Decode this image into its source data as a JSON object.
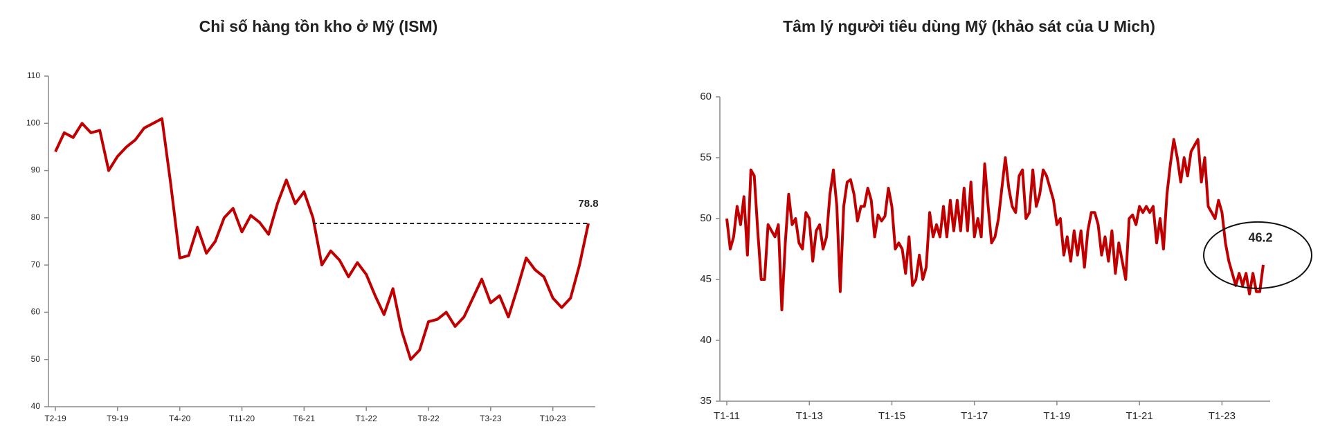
{
  "chart_data": [
    {
      "type": "line",
      "title": "Chỉ số hàng tồn kho ở Mỹ (ISM)",
      "categories": [
        "T2-19",
        null,
        null,
        null,
        null,
        null,
        null,
        "T9-19",
        null,
        null,
        null,
        null,
        null,
        null,
        "T4-20",
        null,
        null,
        null,
        null,
        null,
        null,
        "T11-20",
        null,
        null,
        null,
        null,
        null,
        null,
        "T6-21",
        null,
        null,
        null,
        null,
        null,
        null,
        "T1-22",
        null,
        null,
        null,
        null,
        null,
        null,
        "T8-22",
        null,
        null,
        null,
        null,
        null,
        null,
        "T3-23",
        null,
        null,
        null,
        null,
        null,
        null,
        "T10-23",
        null,
        null,
        null,
        null
      ],
      "series": [
        {
          "name": "ISM",
          "color": "#c00000",
          "values": [
            94,
            98,
            97,
            100,
            98,
            98.5,
            90,
            93,
            95,
            96.5,
            99,
            100,
            101,
            87,
            71.5,
            72,
            78,
            72.5,
            75,
            80,
            82,
            77,
            80.5,
            79,
            76.5,
            83,
            88,
            83,
            85.5,
            80,
            70,
            73,
            71,
            67.5,
            70.5,
            68,
            63.5,
            59.5,
            65,
            56,
            50,
            52,
            58,
            58.5,
            60,
            57,
            59,
            63,
            67,
            62,
            63.5,
            59,
            65,
            71.5,
            69,
            67.5,
            63,
            61,
            63,
            70,
            78.8
          ]
        }
      ],
      "ylim": [
        40,
        110
      ],
      "yticks": [
        40,
        50,
        60,
        70,
        80,
        90,
        100,
        110
      ]
    },
    {
      "type": "line",
      "title": "Tâm lý người tiêu dùng Mỹ (khảo sát của U Mich)",
      "categories": [
        "T1-11",
        null,
        null,
        null,
        null,
        null,
        null,
        null,
        null,
        null,
        null,
        null,
        null,
        null,
        null,
        null,
        null,
        null,
        null,
        null,
        null,
        null,
        null,
        null,
        "T1-13",
        null,
        null,
        null,
        null,
        null,
        null,
        null,
        null,
        null,
        null,
        null,
        null,
        null,
        null,
        null,
        null,
        null,
        null,
        null,
        null,
        null,
        null,
        null,
        "T1-15",
        null,
        null,
        null,
        null,
        null,
        null,
        null,
        null,
        null,
        null,
        null,
        null,
        null,
        null,
        null,
        null,
        null,
        null,
        null,
        null,
        null,
        null,
        null,
        "T1-17",
        null,
        null,
        null,
        null,
        null,
        null,
        null,
        null,
        null,
        null,
        null,
        null,
        null,
        null,
        null,
        null,
        null,
        null,
        null,
        null,
        null,
        null,
        null,
        "T1-19",
        null,
        null,
        null,
        null,
        null,
        null,
        null,
        null,
        null,
        null,
        null,
        null,
        null,
        null,
        null,
        null,
        null,
        null,
        null,
        null,
        null,
        null,
        null,
        "T1-21",
        null,
        null,
        null,
        null,
        null,
        null,
        null,
        null,
        null,
        null,
        null,
        null,
        null,
        null,
        null,
        null,
        null,
        null,
        null,
        null,
        null,
        null,
        null,
        "T1-23",
        null,
        null,
        null,
        null,
        null,
        null,
        null,
        null,
        null,
        null,
        null,
        null
      ],
      "series": [
        {
          "name": "U Mich",
          "color": "#c00000",
          "values": [
            50,
            47.5,
            48.5,
            51,
            49.5,
            51.8,
            47,
            54,
            53.5,
            49,
            45,
            45,
            49.5,
            49,
            48.5,
            49.5,
            42.5,
            48,
            52,
            49.5,
            50,
            48,
            47.5,
            50.5,
            50,
            46.5,
            49,
            49.5,
            47.5,
            48.5,
            52,
            54,
            51,
            44,
            51,
            53,
            53.2,
            52,
            49.8,
            51,
            51,
            52.5,
            51.5,
            48.5,
            50.3,
            49.8,
            50.2,
            52.5,
            51,
            47.5,
            48,
            47.5,
            45.5,
            48.5,
            44.5,
            45,
            47,
            45,
            46,
            50.5,
            48.5,
            49.5,
            48.5,
            51,
            48.5,
            51.5,
            49,
            51.5,
            49,
            52.5,
            49,
            53,
            48.5,
            50,
            48.5,
            54.5,
            51,
            48,
            48.5,
            50,
            52.5,
            55,
            52.5,
            51,
            50.5,
            53.5,
            54,
            50,
            50.5,
            54,
            51,
            52,
            54,
            53.5,
            52.5,
            51.5,
            49.5,
            50,
            47,
            48.5,
            46.5,
            49,
            47,
            49,
            46,
            49,
            50.5,
            50.5,
            49.5,
            47,
            48.5,
            46.5,
            49,
            45.5,
            48,
            46.5,
            45,
            50,
            50.3,
            49.5,
            51,
            50.5,
            51,
            50.5,
            51,
            48,
            50,
            47.5,
            52,
            54.5,
            56.5,
            55,
            53,
            55,
            53.5,
            55.5,
            56,
            56.5,
            53,
            55,
            51,
            50.5,
            50,
            51.5,
            50.5,
            48,
            46.5,
            45.5,
            44.5,
            45.5,
            44.5,
            45.5,
            43.8,
            45.5,
            44,
            44,
            46.2
          ]
        }
      ],
      "ylim": [
        35,
        60
      ],
      "yticks": [
        35,
        40,
        45,
        50,
        55,
        60
      ]
    }
  ]
}
